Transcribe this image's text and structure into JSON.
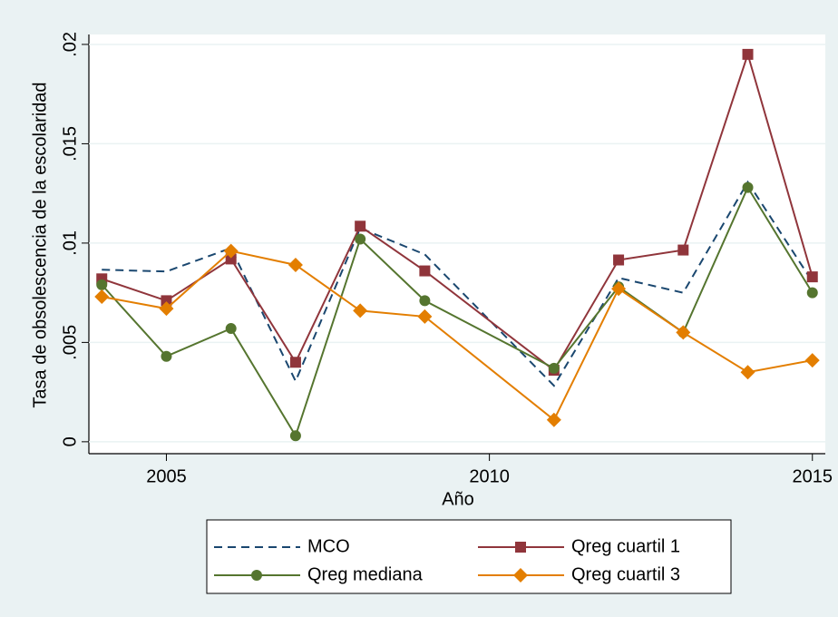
{
  "chart_data": {
    "type": "line",
    "y_label": "Tasa de obsolescencia de la escolaridad",
    "x_label": "Año",
    "x": [
      2004,
      2005,
      2006,
      2007,
      2008,
      2009,
      2011,
      2012,
      2013,
      2014,
      2015
    ],
    "xlim": [
      2003.8,
      2015.2
    ],
    "xticks": [
      2005,
      2010,
      2015
    ],
    "ylim": [
      -0.0006,
      0.0205
    ],
    "yticks": [
      0,
      {
        "value": 0.005,
        "label": ".005"
      },
      {
        "value": 0.01,
        "label": ".01"
      },
      {
        "value": 0.015,
        "label": ".015"
      },
      {
        "value": 0.02,
        "label": ".02"
      }
    ],
    "grid": true,
    "series": [
      {
        "name": "MCO",
        "color": "#1a476f",
        "marker": "none",
        "dash": true,
        "values": [
          0.00866,
          0.00857,
          0.00975,
          0.00305,
          0.01075,
          0.00943,
          0.00282,
          0.00825,
          0.0075,
          0.01307,
          0.00806
        ]
      },
      {
        "name": "Qreg cuartil 1",
        "color": "#90353b",
        "marker": "square",
        "dash": false,
        "values": [
          0.0082,
          0.0071,
          0.0092,
          0.004,
          0.01085,
          0.0086,
          0.0036,
          0.00915,
          0.00965,
          0.0195,
          0.0083
        ]
      },
      {
        "name": "Qreg mediana",
        "color": "#55752f",
        "marker": "circle",
        "dash": false,
        "values": [
          0.0079,
          0.0043,
          0.0057,
          0.0003,
          0.0102,
          0.0071,
          0.0037,
          0.0078,
          0.0055,
          0.0128,
          0.0075
        ]
      },
      {
        "name": "Qreg cuartil 3",
        "color": "#e37e00",
        "marker": "diamond",
        "dash": false,
        "values": [
          0.0073,
          0.0067,
          0.0096,
          0.0089,
          0.0066,
          0.0063,
          0.0011,
          0.0077,
          0.0055,
          0.0035,
          0.0041
        ]
      }
    ]
  }
}
